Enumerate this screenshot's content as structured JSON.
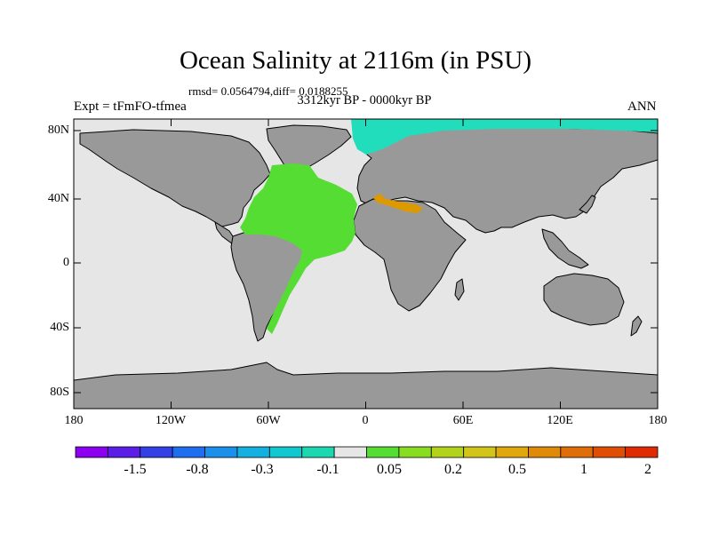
{
  "title": "Ocean Salinity at 2116m (in PSU)",
  "subtitle_stats": "rmsd= 0.0564794,diff= 0.0188255",
  "subtitle_period": "3312kyr BP - 0000kyr BP",
  "left_label": "Expt = tFmFO-tfmea",
  "right_label": "ANN",
  "axes": {
    "lat_ticks": [
      "80N",
      "40N",
      "0",
      "40S",
      "80S"
    ],
    "lon_ticks": [
      "180",
      "120W",
      "60W",
      "0",
      "60E",
      "120E",
      "180"
    ]
  },
  "colors": {
    "land": "#999999",
    "ocean_neutral": "#e6e6e6",
    "atlantic_positive": "#55dd33",
    "arctic_negative": "#22ddbb",
    "mediterranean": "#dd9900"
  },
  "colorbar": {
    "colors": [
      "#8c00f0",
      "#5a1ee6",
      "#3340e6",
      "#1f6ef0",
      "#1a90ea",
      "#14b0e0",
      "#12c8d0",
      "#1cd7b0",
      "#e6e6e6",
      "#55dd33",
      "#88dd22",
      "#b2d21c",
      "#d2c418",
      "#e0a80f",
      "#e08a0a",
      "#e06e08",
      "#e04e06",
      "#e02a04"
    ],
    "labels": [
      "-1.5",
      "-0.8",
      "-0.3",
      "-0.1",
      "0.05",
      "0.2",
      "0.5",
      "1",
      "2"
    ]
  }
}
